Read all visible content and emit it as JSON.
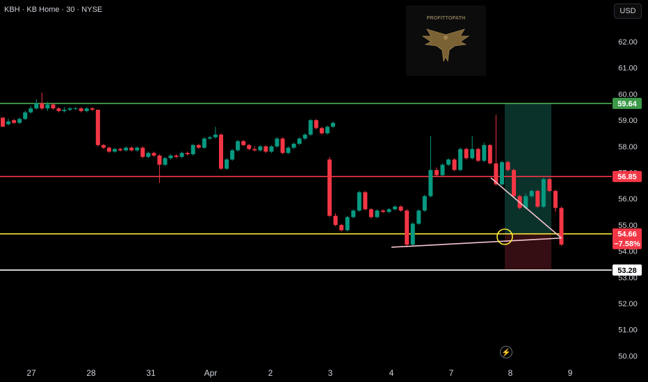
{
  "header": {
    "symbol": "KBH",
    "name": "KB Home",
    "interval": "30",
    "exchange": "NYSE",
    "separator": " · "
  },
  "currency_button": "USD",
  "watermark": "PROFITTOPATH",
  "flash_icon": "lightning-icon",
  "colors": {
    "up": "#089981",
    "down": "#f23645",
    "green_level": "#4caf50",
    "red_level": "#f23645",
    "yellow_level": "#ffeb3b",
    "white_level": "#ffffff",
    "target_zone": "#0c3b33",
    "stop_zone": "#3a0f14",
    "trendline": "#f7c6d0"
  },
  "chart_data": {
    "type": "candlestick",
    "symbol": "KBH",
    "interval": "30",
    "ylim": [
      49.8,
      62.9
    ],
    "y_ticks": [
      "62.00",
      "61.00",
      "60.00",
      "59.00",
      "58.00",
      "57.00",
      "56.00",
      "55.00",
      "54.00",
      "53.00",
      "52.00",
      "51.00",
      "50.00"
    ],
    "x_ticks": [
      "27",
      "28",
      "31",
      "Apr",
      "2",
      "3",
      "4",
      "7",
      "8",
      "9"
    ],
    "horizontal_levels": [
      {
        "label": "59.64",
        "value": 59.64,
        "color": "green"
      },
      {
        "label": "56.85",
        "value": 56.85,
        "color": "red"
      },
      {
        "label": "54.66",
        "value": 54.66,
        "color": "yellow",
        "change": "−7.58%"
      },
      {
        "label": "53.28",
        "value": 53.28,
        "color": "white"
      }
    ],
    "position_zone": {
      "entry": 54.66,
      "target": 59.64,
      "stop": 53.28
    },
    "candles": [
      [
        59.1,
        58.75,
        58.9,
        58.85
      ],
      [
        58.85,
        58.95,
        59.05,
        58.8
      ],
      [
        59.0,
        58.9,
        59.05,
        58.85
      ],
      [
        58.9,
        59.05,
        59.1,
        58.85
      ],
      [
        59.05,
        59.3,
        59.35,
        59.0
      ],
      [
        59.3,
        59.45,
        59.55,
        59.25
      ],
      [
        59.45,
        59.65,
        59.8,
        59.4
      ],
      [
        59.65,
        59.45,
        60.05,
        59.4
      ],
      [
        59.45,
        59.6,
        59.7,
        59.35
      ],
      [
        59.6,
        59.45,
        59.65,
        59.4
      ],
      [
        59.45,
        59.35,
        59.5,
        59.3
      ],
      [
        59.35,
        59.4,
        59.5,
        59.3
      ],
      [
        59.4,
        59.45,
        59.5,
        59.35
      ],
      [
        59.45,
        59.45,
        59.5,
        59.4
      ],
      [
        59.45,
        59.35,
        59.5,
        59.3
      ],
      [
        59.35,
        59.45,
        59.5,
        59.3
      ],
      [
        59.45,
        59.4,
        59.5,
        59.35
      ],
      [
        59.4,
        58.05,
        59.4,
        58.0
      ],
      [
        58.05,
        57.95,
        58.1,
        57.9
      ],
      [
        57.95,
        57.8,
        58.0,
        57.75
      ],
      [
        57.8,
        57.9,
        57.95,
        57.75
      ],
      [
        57.9,
        57.85,
        57.95,
        57.8
      ],
      [
        57.85,
        57.95,
        58.0,
        57.8
      ],
      [
        57.95,
        57.85,
        58.0,
        57.8
      ],
      [
        57.85,
        57.95,
        58.0,
        57.8
      ],
      [
        57.95,
        57.6,
        58.0,
        57.55
      ],
      [
        57.6,
        57.75,
        57.8,
        57.55
      ],
      [
        57.75,
        57.65,
        57.8,
        57.6
      ],
      [
        57.65,
        57.3,
        57.7,
        56.6
      ],
      [
        57.3,
        57.55,
        57.6,
        57.25
      ],
      [
        57.55,
        57.65,
        57.7,
        57.5
      ],
      [
        57.65,
        57.6,
        57.7,
        57.55
      ],
      [
        57.6,
        57.75,
        57.8,
        57.55
      ],
      [
        57.75,
        57.7,
        57.8,
        57.65
      ],
      [
        57.7,
        58.05,
        58.1,
        57.65
      ],
      [
        58.05,
        57.95,
        58.1,
        57.9
      ],
      [
        57.95,
        58.3,
        58.35,
        57.9
      ],
      [
        58.3,
        58.35,
        58.4,
        58.25
      ],
      [
        58.35,
        58.45,
        58.75,
        58.3
      ],
      [
        58.45,
        57.15,
        58.5,
        57.1
      ],
      [
        57.15,
        57.5,
        57.55,
        57.1
      ],
      [
        57.5,
        57.85,
        57.9,
        57.45
      ],
      [
        57.85,
        58.2,
        58.25,
        57.8
      ],
      [
        58.2,
        58.05,
        58.25,
        58.0
      ],
      [
        58.05,
        57.9,
        58.1,
        57.85
      ],
      [
        57.9,
        57.85,
        58.0,
        57.8
      ],
      [
        57.85,
        58.0,
        58.05,
        57.8
      ],
      [
        58.0,
        57.8,
        58.05,
        57.75
      ],
      [
        57.8,
        58.0,
        58.05,
        57.75
      ],
      [
        58.0,
        58.3,
        58.35,
        57.95
      ],
      [
        58.3,
        57.75,
        58.35,
        57.7
      ],
      [
        57.75,
        57.95,
        58.0,
        57.7
      ],
      [
        57.95,
        58.1,
        58.15,
        57.9
      ],
      [
        58.1,
        58.3,
        58.35,
        58.05
      ],
      [
        58.3,
        58.45,
        58.5,
        58.25
      ],
      [
        58.45,
        59.0,
        59.05,
        58.4
      ],
      [
        59.0,
        58.7,
        59.05,
        58.65
      ],
      [
        58.7,
        58.5,
        58.75,
        58.45
      ],
      [
        58.5,
        58.75,
        58.8,
        58.45
      ],
      [
        58.75,
        58.9,
        58.95,
        58.7
      ],
      [
        57.5,
        55.35,
        57.6,
        55.3
      ],
      [
        55.35,
        55.0,
        55.45,
        54.95
      ],
      [
        55.0,
        54.8,
        55.05,
        54.75
      ],
      [
        54.8,
        55.3,
        55.35,
        54.75
      ],
      [
        55.3,
        55.55,
        55.6,
        55.25
      ],
      [
        55.55,
        56.25,
        56.3,
        55.5
      ],
      [
        56.25,
        55.6,
        56.3,
        55.55
      ],
      [
        55.6,
        55.3,
        55.65,
        55.25
      ],
      [
        55.3,
        55.55,
        55.6,
        55.25
      ],
      [
        55.55,
        55.5,
        55.6,
        55.45
      ],
      [
        55.5,
        55.6,
        55.65,
        55.45
      ],
      [
        55.6,
        55.7,
        55.75,
        55.55
      ],
      [
        55.7,
        55.55,
        55.75,
        55.5
      ],
      [
        55.55,
        54.25,
        55.6,
        54.15
      ],
      [
        54.25,
        55.05,
        55.1,
        54.2
      ],
      [
        55.05,
        55.55,
        55.6,
        55.0
      ],
      [
        55.55,
        56.1,
        56.15,
        55.5
      ],
      [
        56.1,
        57.1,
        58.4,
        56.05
      ],
      [
        57.1,
        56.9,
        57.2,
        56.85
      ],
      [
        56.9,
        57.3,
        57.35,
        56.85
      ],
      [
        57.3,
        57.5,
        57.55,
        57.25
      ],
      [
        57.5,
        57.1,
        57.55,
        57.05
      ],
      [
        57.1,
        57.9,
        57.95,
        57.05
      ],
      [
        57.9,
        57.55,
        57.95,
        57.5
      ],
      [
        57.55,
        57.9,
        58.4,
        57.5
      ],
      [
        57.9,
        57.45,
        57.95,
        57.4
      ],
      [
        57.45,
        58.05,
        58.15,
        57.4
      ],
      [
        58.05,
        57.35,
        58.1,
        57.3
      ],
      [
        57.35,
        56.55,
        59.2,
        56.5
      ],
      [
        56.55,
        57.4,
        57.45,
        56.5
      ],
      [
        57.4,
        57.1,
        57.45,
        57.05
      ],
      [
        57.1,
        56.1,
        57.15,
        56.05
      ],
      [
        56.1,
        55.65,
        56.15,
        55.6
      ],
      [
        55.65,
        56.1,
        56.2,
        55.6
      ],
      [
        56.1,
        56.3,
        56.35,
        56.05
      ],
      [
        56.3,
        55.7,
        56.35,
        55.65
      ],
      [
        55.7,
        56.75,
        56.8,
        55.65
      ],
      [
        56.75,
        56.3,
        56.8,
        56.25
      ],
      [
        56.3,
        55.65,
        56.35,
        55.5
      ],
      [
        55.65,
        54.25,
        55.7,
        54.2
      ]
    ]
  }
}
